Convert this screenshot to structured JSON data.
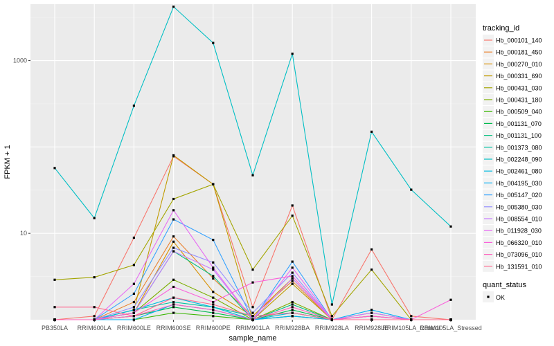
{
  "chart_data": {
    "type": "line",
    "title": "",
    "xlabel": "sample_name",
    "ylabel": "FPKM + 1",
    "y_scale": "log10",
    "ylim": [
      1,
      4500
    ],
    "y_ticks": [
      {
        "value": 10,
        "label": "10"
      },
      {
        "value": 1000,
        "label": "1000"
      }
    ],
    "categories": [
      "PB350LA",
      "RRIM600LA",
      "RRIM600LE",
      "RRIM600SE",
      "RRIM600PE",
      "RRIM901LA",
      "RRIM928BA",
      "RRIM928LA",
      "RRIM928LE",
      "RRIM105LA_Control",
      "RRIM105LA_Stressed"
    ],
    "legend_title": "tracking_id",
    "legend2_title": "quant_status",
    "legend2_label": "OK",
    "series": [
      {
        "name": "Hb_000101_140",
        "color": "#F8766D",
        "values": [
          1.0,
          1.1,
          8.9,
          78.0,
          37.0,
          1.4,
          21.0,
          1.0,
          6.5,
          1.1,
          1.0
        ]
      },
      {
        "name": "Hb_000181_450",
        "color": "#EA8331",
        "values": [
          1.0,
          1.0,
          1.6,
          9.2,
          3.0,
          1.1,
          2.8,
          1.0,
          1.2,
          1.0,
          1.0
        ]
      },
      {
        "name": "Hb_000270_010",
        "color": "#D89000",
        "values": [
          1.0,
          1.0,
          1.2,
          8.0,
          2.1,
          1.1,
          3.0,
          1.0,
          1.0,
          1.0,
          1.0
        ]
      },
      {
        "name": "Hb_000331_690",
        "color": "#C09B00",
        "values": [
          1.0,
          1.0,
          1.3,
          80.0,
          37.0,
          1.0,
          2.6,
          1.0,
          1.1,
          1.0,
          1.0
        ]
      },
      {
        "name": "Hb_000431_030",
        "color": "#A3A500",
        "values": [
          2.9,
          3.1,
          4.3,
          25.0,
          37.0,
          3.8,
          16.0,
          1.1,
          3.8,
          1.0,
          1.0
        ]
      },
      {
        "name": "Hb_000431_180",
        "color": "#7CAE00",
        "values": [
          1.0,
          1.0,
          1.2,
          2.9,
          1.8,
          1.0,
          1.6,
          1.0,
          1.0,
          1.0,
          1.0
        ]
      },
      {
        "name": "Hb_000509_040",
        "color": "#39B600",
        "values": [
          1.0,
          1.0,
          1.0,
          1.2,
          1.1,
          1.0,
          1.1,
          1.0,
          1.0,
          1.0,
          1.0
        ]
      },
      {
        "name": "Hb_001131_070",
        "color": "#00BB4E",
        "values": [
          1.0,
          1.0,
          1.1,
          1.4,
          1.2,
          1.0,
          1.3,
          1.0,
          1.0,
          1.0,
          1.0
        ]
      },
      {
        "name": "Hb_001131_100",
        "color": "#00BF7D",
        "values": [
          1.0,
          1.0,
          1.2,
          6.2,
          3.2,
          1.0,
          1.5,
          1.0,
          1.0,
          1.0,
          1.0
        ]
      },
      {
        "name": "Hb_001373_080",
        "color": "#00C1A3",
        "values": [
          1.0,
          1.0,
          1.3,
          1.6,
          1.4,
          1.1,
          1.2,
          1.0,
          1.0,
          1.0,
          1.0
        ]
      },
      {
        "name": "Hb_002248_090",
        "color": "#00BFC4",
        "values": [
          57.0,
          15.0,
          300.0,
          4200.0,
          1600.0,
          47.0,
          1200.0,
          1.5,
          150.0,
          32.0,
          12.0
        ]
      },
      {
        "name": "Hb_002461_080",
        "color": "#00BAE0",
        "values": [
          1.0,
          1.0,
          1.3,
          1.8,
          1.4,
          1.0,
          1.2,
          1.0,
          1.0,
          1.0,
          1.0
        ]
      },
      {
        "name": "Hb_004195_030",
        "color": "#00B0F6",
        "values": [
          1.0,
          1.0,
          1.0,
          1.5,
          1.3,
          1.0,
          1.1,
          1.0,
          1.3,
          1.0,
          1.0
        ]
      },
      {
        "name": "Hb_005147_020",
        "color": "#35A2FF",
        "values": [
          1.0,
          1.0,
          2.0,
          14.5,
          8.4,
          1.0,
          4.7,
          1.0,
          1.0,
          1.0,
          1.0
        ]
      },
      {
        "name": "Hb_005380_030",
        "color": "#9590FF",
        "values": [
          1.0,
          1.0,
          1.4,
          6.8,
          4.6,
          1.2,
          3.5,
          1.0,
          1.1,
          1.0,
          1.0
        ]
      },
      {
        "name": "Hb_008554_010",
        "color": "#C77CFF",
        "values": [
          1.0,
          1.0,
          1.2,
          6.2,
          3.8,
          1.0,
          3.0,
          1.0,
          1.2,
          1.0,
          1.0
        ]
      },
      {
        "name": "Hb_011928_030",
        "color": "#E76BF3",
        "values": [
          1.0,
          1.0,
          2.6,
          18.5,
          4.0,
          1.0,
          4.0,
          1.0,
          1.1,
          1.0,
          1.0
        ]
      },
      {
        "name": "Hb_066320_010",
        "color": "#FA62DB",
        "values": [
          1.0,
          1.0,
          1.2,
          2.4,
          1.6,
          2.7,
          3.2,
          1.0,
          1.0,
          1.0,
          1.7
        ]
      },
      {
        "name": "Hb_073096_010",
        "color": "#FF62BC",
        "values": [
          1.0,
          1.0,
          1.1,
          1.5,
          1.3,
          1.0,
          1.4,
          1.0,
          1.1,
          1.0,
          1.0
        ]
      },
      {
        "name": "Hb_131591_010",
        "color": "#FF6C91",
        "values": [
          1.4,
          1.4,
          1.1,
          1.8,
          1.5,
          1.1,
          1.2,
          1.0,
          1.0,
          1.0,
          1.0
        ]
      }
    ]
  }
}
